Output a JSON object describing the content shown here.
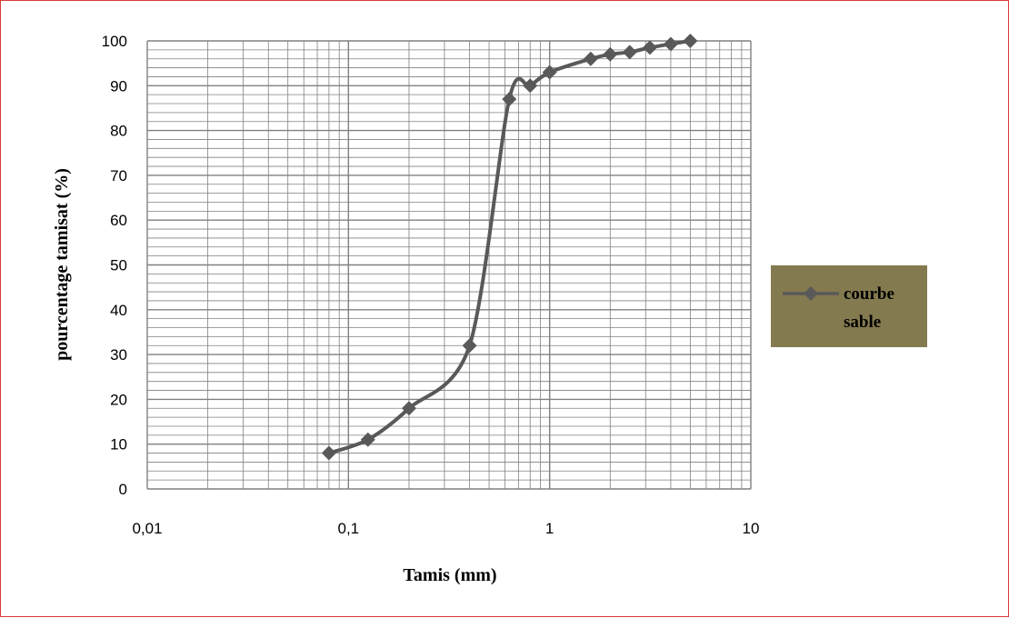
{
  "chart_data": {
    "type": "line",
    "title": "",
    "xlabel": "Tamis (mm)",
    "ylabel": "pourcentage tamisat (%)",
    "x_scale": "log",
    "xlim": [
      0.01,
      10
    ],
    "ylim": [
      0,
      100
    ],
    "x_ticks": [
      "0,01",
      "0,1",
      "1",
      "10"
    ],
    "y_ticks": [
      "0",
      "10",
      "20",
      "30",
      "40",
      "50",
      "60",
      "70",
      "80",
      "90",
      "100"
    ],
    "grid": true,
    "legend_position": "right",
    "series": [
      {
        "name": "courbe sable",
        "name_lines": [
          "courbe",
          "sable"
        ],
        "color": "#595959",
        "marker": "diamond",
        "x": [
          0.08,
          0.125,
          0.2,
          0.4,
          0.63,
          0.8,
          1,
          1.6,
          2,
          2.5,
          3.15,
          4,
          5
        ],
        "y": [
          8,
          11,
          18,
          32,
          87,
          90,
          93,
          96,
          97,
          97.5,
          98.5,
          99.3,
          100
        ]
      }
    ]
  },
  "colors": {
    "frame_border": "#d93a3a",
    "grid": "#808080",
    "legend_background": "#847a4f",
    "line": "#595959"
  }
}
